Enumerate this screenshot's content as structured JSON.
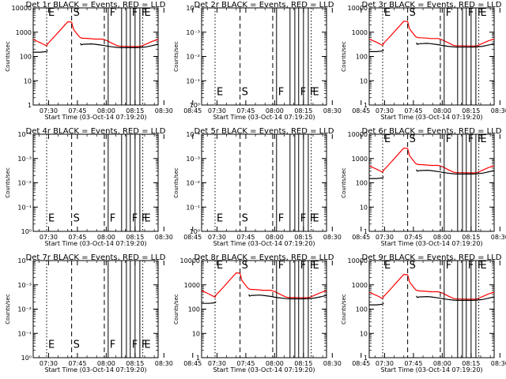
{
  "chart_data": {
    "type": "line",
    "x_tick_labels": [
      "07:30",
      "07:45",
      "08:00",
      "08:15",
      "08:30",
      "08:45"
    ],
    "x_range_minutes_after_0730": [
      -8,
      57
    ],
    "xlabel": "Start Time (03-Oct-14 07:19:20)",
    "ylabel": "Counts/sec",
    "ylim": [
      1,
      10000
    ],
    "y_scale": "log",
    "y_tick_labels_normal": [
      "1",
      "10",
      "100",
      "1000",
      "10000"
    ],
    "y_tick_labels_empty": [
      "10⁰",
      "10⁻¹",
      "10⁻²",
      "10⁻³",
      "10⁻⁴"
    ],
    "colors": {
      "events": "#000000",
      "lld": "#ff0000",
      "axes": "#000000"
    },
    "marker_lines": [
      {
        "x": -1,
        "style": "dotted",
        "label": "E"
      },
      {
        "x": 12,
        "style": "dashed",
        "label": "S"
      },
      {
        "x": 29,
        "style": "dashed"
      },
      {
        "x": 31,
        "style": "solid",
        "label": "F"
      },
      {
        "x": 38,
        "style": "solid"
      },
      {
        "x": 40.5,
        "style": "solid"
      },
      {
        "x": 42.5,
        "style": "solid",
        "label": "F"
      },
      {
        "x": 45,
        "style": "solid"
      },
      {
        "x": 47.5,
        "style": "solid",
        "label": "F"
      },
      {
        "x": 49,
        "style": "dotted",
        "label": "E"
      }
    ],
    "curve_x": [
      -8,
      -4,
      -1,
      -0.5,
      3,
      6,
      9,
      10,
      12,
      13,
      16,
      16.5,
      17,
      18,
      19,
      22,
      24,
      28,
      30,
      33,
      36,
      38,
      40,
      45,
      48,
      51,
      54,
      57
    ],
    "lld_y": [
      500,
      360,
      270,
      330,
      650,
      1200,
      2200,
      2700,
      2600,
      1300,
      650,
      600,
      580,
      560,
      560,
      540,
      520,
      520,
      460,
      350,
      270,
      260,
      260,
      255,
      260,
      330,
      420,
      500
    ],
    "events_y": [
      150,
      150,
      160,
      180,
      0,
      0,
      0,
      0,
      0,
      0,
      0,
      350,
      300,
      320,
      320,
      330,
      320,
      290,
      270,
      250,
      235,
      230,
      230,
      230,
      235,
      250,
      280,
      320
    ],
    "events_break": [
      4,
      10
    ],
    "panels": [
      {
        "title": "Det 1r BLACK = Events, RED = LLD",
        "has_data": true,
        "y_scale": 1
      },
      {
        "title": "Det 2r BLACK = Events, RED = LLD",
        "has_data": false,
        "y_scale": 1
      },
      {
        "title": "Det 3r BLACK = Events, RED = LLD",
        "has_data": true,
        "y_scale": 1.05
      },
      {
        "title": "Det 4r BLACK = Events, RED = LLD",
        "has_data": false,
        "y_scale": 1
      },
      {
        "title": "Det 5r BLACK = Events, RED = LLD",
        "has_data": false,
        "y_scale": 1
      },
      {
        "title": "Det 6r BLACK = Events, RED = LLD",
        "has_data": true,
        "y_scale": 1
      },
      {
        "title": "Det 7r BLACK = Events, RED = LLD",
        "has_data": false,
        "y_scale": 1
      },
      {
        "title": "Det 8r BLACK = Events, RED = LLD",
        "has_data": true,
        "y_scale": 1.15
      },
      {
        "title": "Det 9r BLACK = Events, RED = LLD",
        "has_data": true,
        "y_scale": 1
      }
    ]
  }
}
